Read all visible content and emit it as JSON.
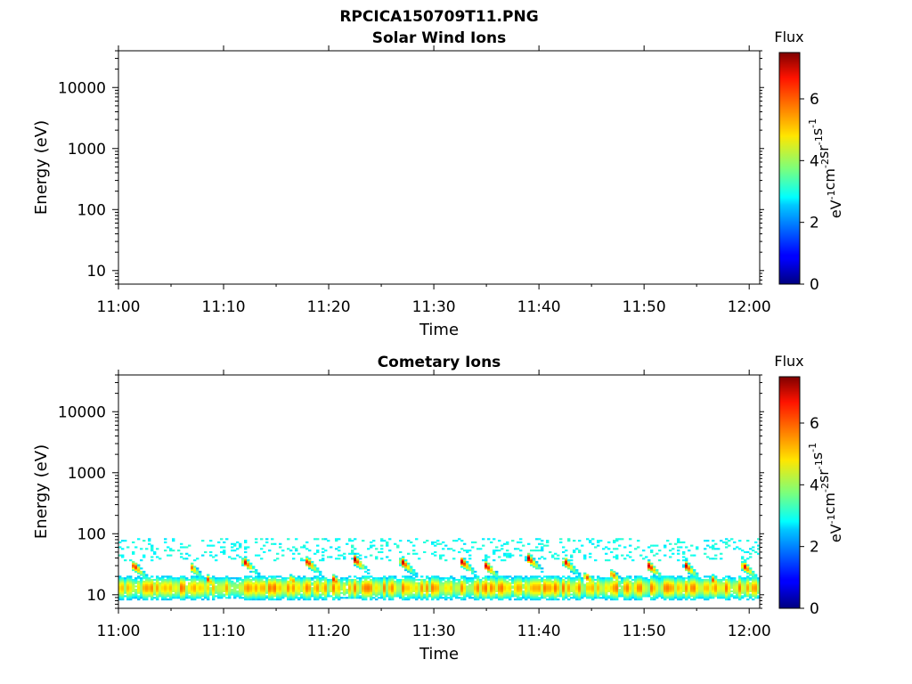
{
  "figure": {
    "title": "RPCICA150709T11.PNG"
  },
  "chart_data": [
    {
      "type": "heatmap",
      "title": "Solar Wind Ions",
      "xlabel": "Time",
      "ylabel": "Energy (eV)",
      "x_ticks": [
        "11:00",
        "11:10",
        "11:20",
        "11:30",
        "11:40",
        "11:50",
        "12:00"
      ],
      "y_scale": "log",
      "y_ticks": [
        "10",
        "100",
        "1000",
        "10000"
      ],
      "xlim": [
        "11:00",
        "12:01"
      ],
      "ylim": [
        6,
        40000
      ],
      "colorbar": {
        "title": "Flux",
        "label": "eV-1cm-2sr-1s-1",
        "ticks": [
          "0",
          "2",
          "4",
          "6"
        ],
        "range": [
          0,
          7.5
        ],
        "colormap": "jet"
      },
      "data": []
    },
    {
      "type": "heatmap",
      "title": "Cometary Ions",
      "xlabel": "Time",
      "ylabel": "Energy (eV)",
      "x_ticks": [
        "11:00",
        "11:10",
        "11:20",
        "11:30",
        "11:40",
        "11:50",
        "12:00"
      ],
      "y_scale": "log",
      "y_ticks": [
        "10",
        "100",
        "1000",
        "10000"
      ],
      "xlim": [
        "11:00",
        "12:01"
      ],
      "ylim": [
        6,
        40000
      ],
      "colorbar": {
        "title": "Flux",
        "label": "eV-1cm-2sr-1s-1",
        "ticks": [
          "0",
          "2",
          "4",
          "6"
        ],
        "range": [
          0,
          7.5
        ],
        "colormap": "jet"
      },
      "flux_peaks": [
        {
          "time": "11:01.5",
          "energy": 30,
          "flux": 7.0
        },
        {
          "time": "11:07.0",
          "energy": 28,
          "flux": 5.8
        },
        {
          "time": "11:08.5",
          "energy": 18,
          "flux": 6.2
        },
        {
          "time": "11:12.0",
          "energy": 35,
          "flux": 7.2
        },
        {
          "time": "11:16.5",
          "energy": 18,
          "flux": 6.0
        },
        {
          "time": "11:18.0",
          "energy": 35,
          "flux": 7.0
        },
        {
          "time": "11:20.5",
          "energy": 18,
          "flux": 6.5
        },
        {
          "time": "11:22.5",
          "energy": 38,
          "flux": 7.3
        },
        {
          "time": "11:27.0",
          "energy": 35,
          "flux": 7.4
        },
        {
          "time": "11:32.7",
          "energy": 35,
          "flux": 7.2
        },
        {
          "time": "11:35.0",
          "energy": 30,
          "flux": 7.2
        },
        {
          "time": "11:39.0",
          "energy": 40,
          "flux": 7.4
        },
        {
          "time": "11:42.5",
          "energy": 35,
          "flux": 7.1
        },
        {
          "time": "11:44.5",
          "energy": 20,
          "flux": 6.5
        },
        {
          "time": "11:47.0",
          "energy": 22,
          "flux": 6.3
        },
        {
          "time": "11:50.5",
          "energy": 30,
          "flux": 7.2
        },
        {
          "time": "11:54.0",
          "energy": 30,
          "flux": 7.1
        },
        {
          "time": "11:56.5",
          "energy": 18,
          "flux": 6.3
        },
        {
          "time": "11:59.5",
          "energy": 30,
          "flux": 7.2
        }
      ]
    }
  ]
}
